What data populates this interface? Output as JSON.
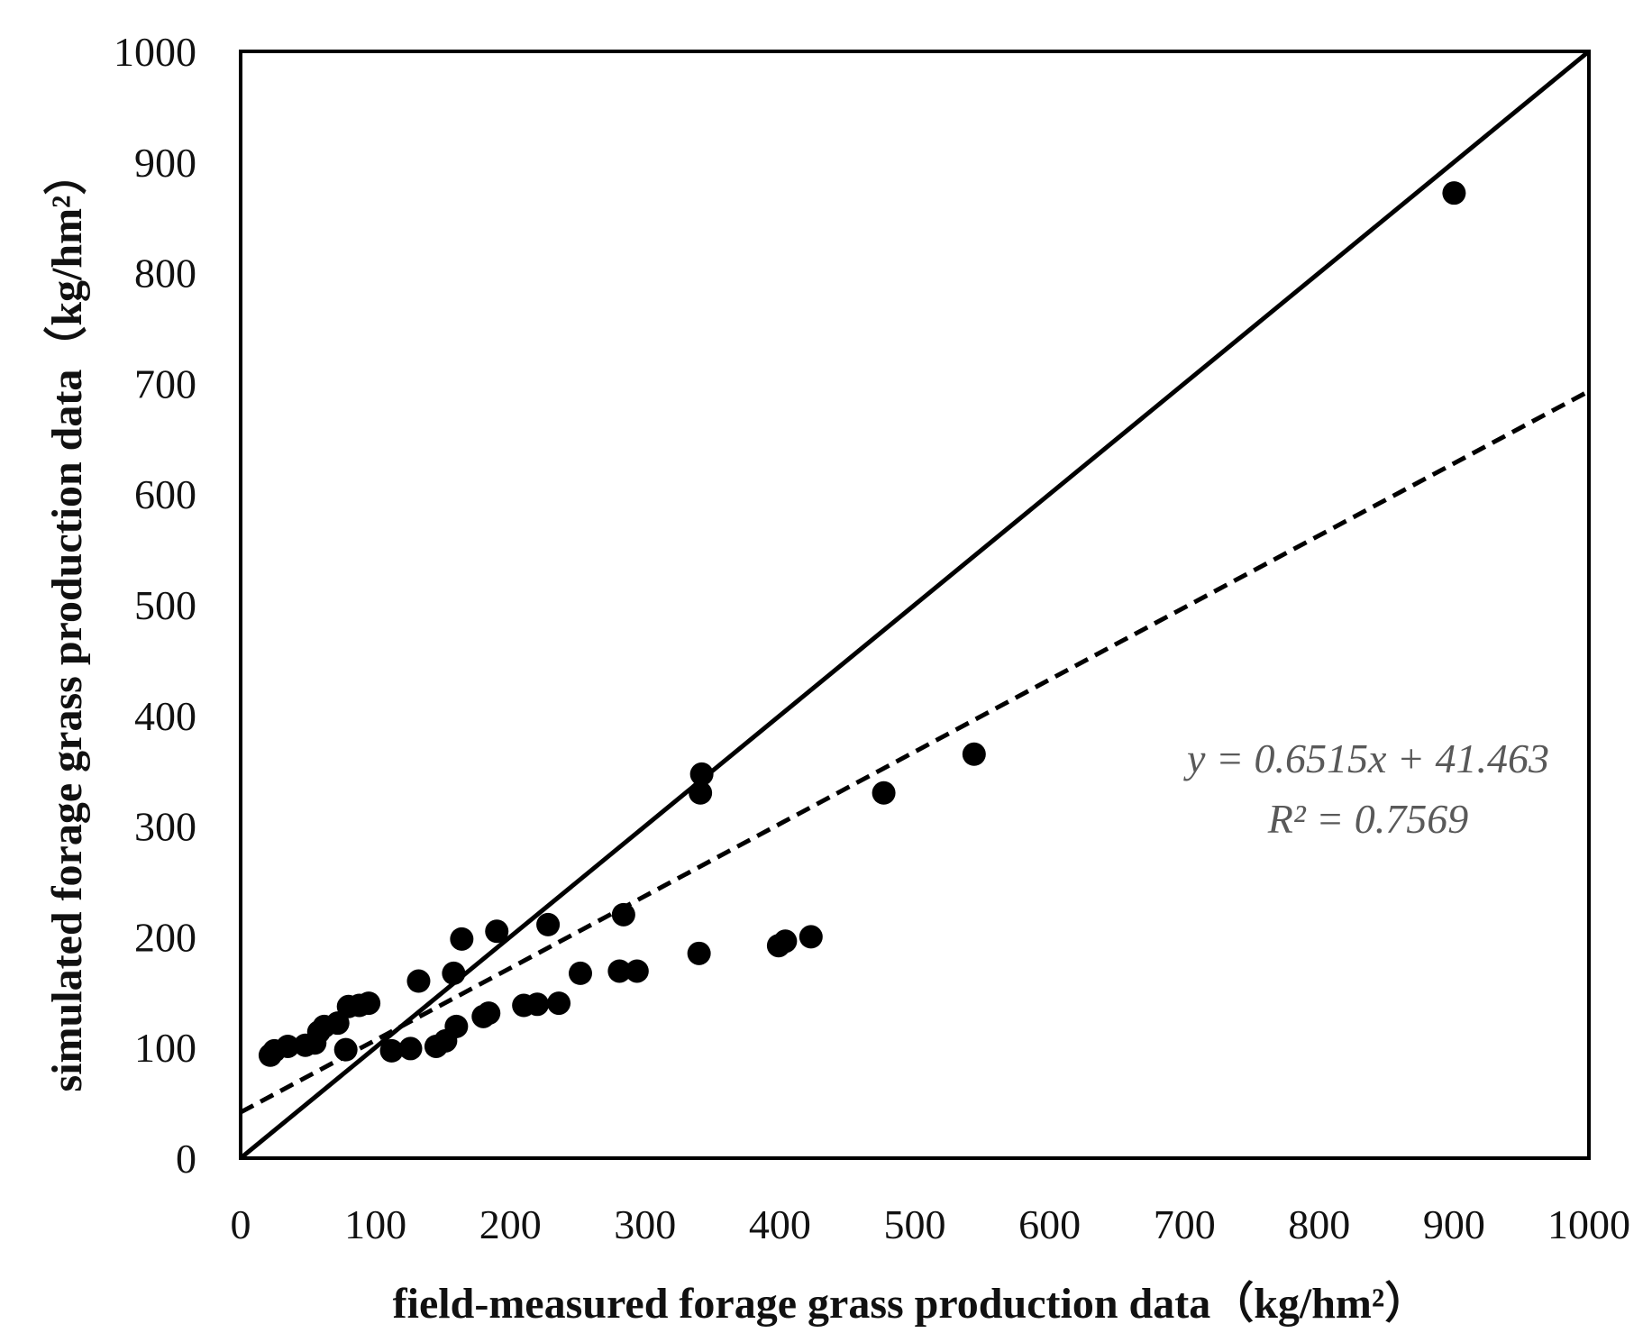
{
  "chart_data": {
    "type": "scatter",
    "title": "",
    "xlabel": "field-measured forage grass production data（kg/hm²）",
    "ylabel": "simulated forage grass production data（kg/hm²）",
    "xlim": [
      0,
      1000
    ],
    "ylim": [
      0,
      1000
    ],
    "xticks": [
      "0",
      "100",
      "200",
      "300",
      "400",
      "500",
      "600",
      "700",
      "800",
      "900",
      "1000"
    ],
    "yticks": [
      "0",
      "100",
      "200",
      "300",
      "400",
      "500",
      "600",
      "700",
      "800",
      "900",
      "1000"
    ],
    "grid": false,
    "series": [
      {
        "name": "observations",
        "points": [
          [
            22,
            93
          ],
          [
            25,
            97
          ],
          [
            35,
            101
          ],
          [
            48,
            102
          ],
          [
            55,
            104
          ],
          [
            58,
            114
          ],
          [
            62,
            119
          ],
          [
            72,
            122
          ],
          [
            78,
            98
          ],
          [
            80,
            137
          ],
          [
            88,
            138
          ],
          [
            95,
            140
          ],
          [
            112,
            97
          ],
          [
            126,
            99
          ],
          [
            132,
            160
          ],
          [
            145,
            101
          ],
          [
            152,
            106
          ],
          [
            158,
            167
          ],
          [
            160,
            119
          ],
          [
            164,
            198
          ],
          [
            180,
            128
          ],
          [
            184,
            131
          ],
          [
            190,
            205
          ],
          [
            210,
            138
          ],
          [
            220,
            139
          ],
          [
            228,
            211
          ],
          [
            236,
            140
          ],
          [
            252,
            167
          ],
          [
            281,
            169
          ],
          [
            284,
            220
          ],
          [
            294,
            169
          ],
          [
            340,
            185
          ],
          [
            341,
            330
          ],
          [
            342,
            347
          ],
          [
            399,
            192
          ],
          [
            404,
            196
          ],
          [
            423,
            200
          ],
          [
            477,
            330
          ],
          [
            544,
            365
          ],
          [
            900,
            872
          ]
        ]
      }
    ],
    "lines": [
      {
        "name": "1:1 line",
        "style": "solid",
        "slope": 1,
        "intercept": 0
      },
      {
        "name": "linear fit",
        "style": "dashed",
        "slope": 0.6515,
        "intercept": 41.463
      }
    ],
    "annotations": {
      "equation": "y = 0.6515x + 41.463",
      "r2": "R² = 0.7569"
    }
  }
}
